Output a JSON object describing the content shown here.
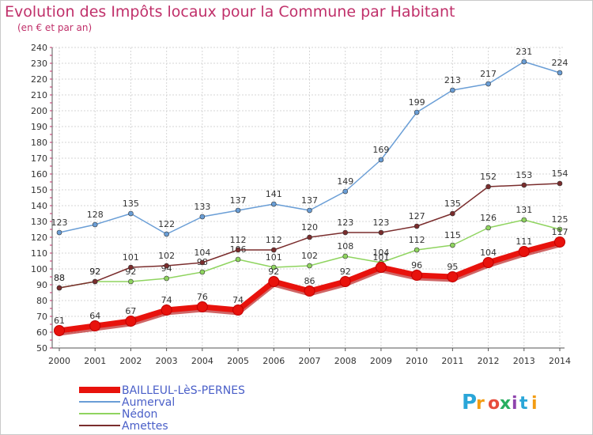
{
  "chart_data": {
    "type": "line",
    "title": "Evolution des Impôts locaux pour la Commune par Habitant",
    "subtitle": "(en € et par an)",
    "x": [
      "2000",
      "2001",
      "2002",
      "2003",
      "2004",
      "2005",
      "2006",
      "2007",
      "2008",
      "2009",
      "2010",
      "2011",
      "2012",
      "2013",
      "2014"
    ],
    "ylim": [
      50,
      240
    ],
    "yticks": [
      50,
      60,
      70,
      80,
      90,
      100,
      110,
      120,
      130,
      140,
      150,
      160,
      170,
      180,
      190,
      200,
      210,
      220,
      230,
      240
    ],
    "grid": true,
    "legend_position": "bottom-left",
    "series": [
      {
        "name": "BAILLEUL-LèS-PERNES",
        "color": "#e8120c",
        "values": [
          61,
          64,
          67,
          74,
          76,
          74,
          92,
          86,
          92,
          101,
          96,
          95,
          104,
          111,
          117
        ]
      },
      {
        "name": "Aumerval",
        "color": "#6a9ed6",
        "values": [
          123,
          128,
          135,
          122,
          133,
          137,
          141,
          137,
          149,
          169,
          199,
          213,
          217,
          231,
          224
        ]
      },
      {
        "name": "Nédon",
        "color": "#8fd45f",
        "values": [
          88,
          92,
          92,
          94,
          98,
          106,
          101,
          102,
          108,
          104,
          112,
          115,
          126,
          131,
          125
        ]
      },
      {
        "name": "Amettes",
        "color": "#7a2d2d",
        "values": [
          88,
          92,
          101,
          102,
          104,
          112,
          112,
          120,
          123,
          123,
          127,
          135,
          152,
          153,
          154
        ]
      }
    ]
  },
  "logo": {
    "text": "Proxiti",
    "letters": [
      "P",
      "r",
      "o",
      "x",
      "i",
      "t",
      "i"
    ],
    "colors": [
      "#2aa6d8",
      "#f39c12",
      "#e74c3c",
      "#27ae60",
      "#8e44ad",
      "#2aa6d8",
      "#f39c12"
    ]
  }
}
